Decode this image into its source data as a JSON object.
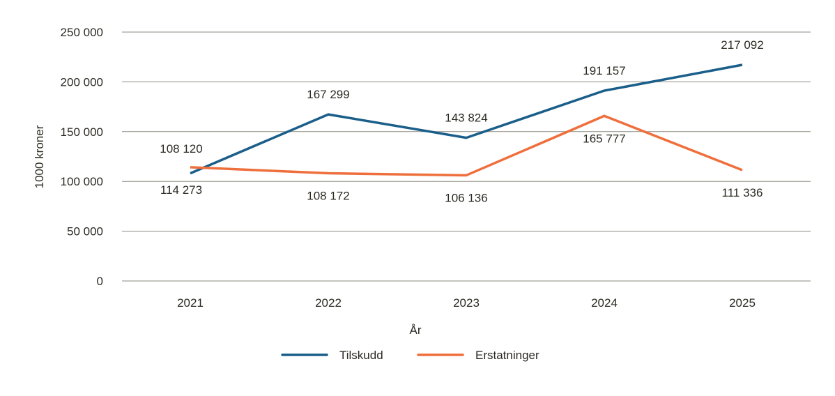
{
  "chart_data": {
    "type": "line",
    "title": "",
    "xlabel": "År",
    "ylabel": "1000 kroner",
    "categories": [
      "2021",
      "2022",
      "2023",
      "2024",
      "2025"
    ],
    "ylim": [
      0,
      250000
    ],
    "yticks": [
      0,
      50000,
      100000,
      150000,
      200000,
      250000
    ],
    "ytick_labels": [
      "0",
      "50 000",
      "100 000",
      "150 000",
      "200 000",
      "250 000"
    ],
    "grid": true,
    "legend": "bottom",
    "series": [
      {
        "name": "Tilskudd",
        "color": "#1a5e8a",
        "values": [
          108120,
          167299,
          143824,
          191157,
          217092
        ],
        "labels": [
          "108 120",
          "167 299",
          "143 824",
          "191 157",
          "217 092"
        ]
      },
      {
        "name": "Erstatninger",
        "color": "#ef6f3c",
        "values": [
          114273,
          108172,
          106136,
          165777,
          111336
        ],
        "labels": [
          "114 273",
          "108 172",
          "106 136",
          "165 777",
          "111 336"
        ]
      }
    ]
  }
}
